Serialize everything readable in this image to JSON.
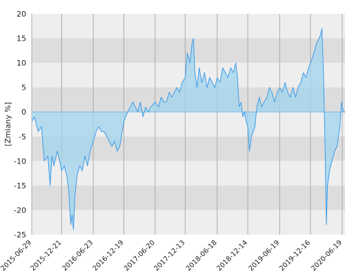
{
  "chart_data": {
    "type": "area",
    "ylabel": "[Zmiany %]",
    "xlabel": "",
    "ylim": [
      -25,
      20
    ],
    "y_ticks": [
      "20",
      "15",
      "10",
      "5",
      "0",
      "-5",
      "-10",
      "-15",
      "-20",
      "-25"
    ],
    "x_ticks": [
      "2015-06-29",
      "2015-12-21",
      "2016-06-23",
      "2016-12-19",
      "2017-06-20",
      "2017-12-13",
      "2018-06-18",
      "2018-12-14",
      "2019-06-19",
      "2019-12-16",
      "2020-06-19"
    ],
    "grid": true,
    "series": [
      {
        "values": [
          [
            "2015-06-29",
            -2
          ],
          [
            "2015-07-15",
            -1
          ],
          [
            "2015-08-05",
            -4
          ],
          [
            "2015-08-25",
            -3
          ],
          [
            "2015-09-10",
            -10
          ],
          [
            "2015-10-01",
            -9
          ],
          [
            "2015-10-15",
            -15
          ],
          [
            "2015-10-25",
            -9
          ],
          [
            "2015-11-05",
            -11
          ],
          [
            "2015-11-25",
            -8
          ],
          [
            "2015-12-10",
            -10
          ],
          [
            "2015-12-21",
            -12
          ],
          [
            "2016-01-05",
            -11
          ],
          [
            "2016-01-20",
            -13
          ],
          [
            "2016-02-01",
            -16
          ],
          [
            "2016-02-12",
            -23
          ],
          [
            "2016-02-20",
            -21
          ],
          [
            "2016-02-28",
            -24
          ],
          [
            "2016-03-08",
            -17
          ],
          [
            "2016-03-20",
            -13
          ],
          [
            "2016-04-05",
            -11
          ],
          [
            "2016-04-20",
            -12
          ],
          [
            "2016-05-05",
            -9
          ],
          [
            "2016-05-20",
            -11
          ],
          [
            "2016-06-05",
            -8
          ],
          [
            "2016-06-23",
            -6
          ],
          [
            "2016-07-10",
            -4
          ],
          [
            "2016-07-25",
            -3
          ],
          [
            "2016-08-10",
            -4
          ],
          [
            "2016-08-25",
            -4
          ],
          [
            "2016-09-10",
            -5
          ],
          [
            "2016-09-25",
            -6
          ],
          [
            "2016-10-10",
            -7
          ],
          [
            "2016-10-25",
            -6
          ],
          [
            "2016-11-10",
            -8
          ],
          [
            "2016-11-25",
            -7
          ],
          [
            "2016-12-19",
            -2
          ],
          [
            "2017-01-10",
            0
          ],
          [
            "2017-01-25",
            1
          ],
          [
            "2017-02-10",
            2
          ],
          [
            "2017-02-25",
            1
          ],
          [
            "2017-03-10",
            0
          ],
          [
            "2017-03-25",
            2
          ],
          [
            "2017-04-10",
            -1
          ],
          [
            "2017-04-25",
            1
          ],
          [
            "2017-05-10",
            0
          ],
          [
            "2017-05-25",
            1
          ],
          [
            "2017-06-20",
            2
          ],
          [
            "2017-07-10",
            1
          ],
          [
            "2017-07-25",
            3
          ],
          [
            "2017-08-10",
            2
          ],
          [
            "2017-08-25",
            2
          ],
          [
            "2017-09-10",
            4
          ],
          [
            "2017-09-25",
            3
          ],
          [
            "2017-10-10",
            4
          ],
          [
            "2017-10-25",
            5
          ],
          [
            "2017-11-10",
            4
          ],
          [
            "2017-11-25",
            6
          ],
          [
            "2017-12-13",
            7
          ],
          [
            "2017-12-25",
            12
          ],
          [
            "2018-01-10",
            10
          ],
          [
            "2018-01-22",
            14
          ],
          [
            "2018-01-30",
            15
          ],
          [
            "2018-02-08",
            8
          ],
          [
            "2018-02-20",
            5
          ],
          [
            "2018-03-05",
            9
          ],
          [
            "2018-03-20",
            6
          ],
          [
            "2018-04-05",
            8
          ],
          [
            "2018-04-20",
            5
          ],
          [
            "2018-05-05",
            7
          ],
          [
            "2018-05-20",
            6
          ],
          [
            "2018-06-05",
            5
          ],
          [
            "2018-06-18",
            7
          ],
          [
            "2018-07-05",
            6
          ],
          [
            "2018-07-20",
            9
          ],
          [
            "2018-08-05",
            8
          ],
          [
            "2018-08-20",
            7
          ],
          [
            "2018-09-05",
            9
          ],
          [
            "2018-09-20",
            8
          ],
          [
            "2018-10-05",
            10
          ],
          [
            "2018-10-15",
            7
          ],
          [
            "2018-10-25",
            1
          ],
          [
            "2018-11-05",
            2
          ],
          [
            "2018-11-15",
            -1
          ],
          [
            "2018-11-25",
            0
          ],
          [
            "2018-12-05",
            -2
          ],
          [
            "2018-12-14",
            -3
          ],
          [
            "2018-12-24",
            -8
          ],
          [
            "2019-01-05",
            -5
          ],
          [
            "2019-01-15",
            -4
          ],
          [
            "2019-01-25",
            -3
          ],
          [
            "2019-02-05",
            1
          ],
          [
            "2019-02-20",
            3
          ],
          [
            "2019-03-05",
            1
          ],
          [
            "2019-03-20",
            2
          ],
          [
            "2019-04-05",
            3
          ],
          [
            "2019-04-20",
            5
          ],
          [
            "2019-05-05",
            4
          ],
          [
            "2019-05-20",
            2
          ],
          [
            "2019-06-05",
            4
          ],
          [
            "2019-06-19",
            5
          ],
          [
            "2019-07-05",
            4
          ],
          [
            "2019-07-20",
            6
          ],
          [
            "2019-08-05",
            4
          ],
          [
            "2019-08-20",
            3
          ],
          [
            "2019-09-05",
            5
          ],
          [
            "2019-09-20",
            3
          ],
          [
            "2019-10-05",
            5
          ],
          [
            "2019-10-20",
            6
          ],
          [
            "2019-11-05",
            8
          ],
          [
            "2019-11-20",
            7
          ],
          [
            "2019-12-05",
            9
          ],
          [
            "2019-12-16",
            10
          ],
          [
            "2020-01-05",
            12
          ],
          [
            "2020-01-20",
            14
          ],
          [
            "2020-02-05",
            15
          ],
          [
            "2020-02-15",
            16
          ],
          [
            "2020-02-21",
            17
          ],
          [
            "2020-03-01",
            8
          ],
          [
            "2020-03-06",
            0
          ],
          [
            "2020-03-12",
            -10
          ],
          [
            "2020-03-18",
            -23
          ],
          [
            "2020-03-25",
            -15
          ],
          [
            "2020-04-05",
            -12
          ],
          [
            "2020-04-20",
            -10
          ],
          [
            "2020-05-05",
            -8
          ],
          [
            "2020-05-20",
            -7
          ],
          [
            "2020-06-05",
            -3
          ],
          [
            "2020-06-15",
            2
          ],
          [
            "2020-06-19",
            1
          ],
          [
            "2020-06-28",
            0
          ],
          [
            "2020-07-05",
            0
          ]
        ]
      }
    ],
    "colors": {
      "line": "#3d9be8",
      "fill": "#9fd3ec",
      "band_light": "#eeeeee",
      "band_dark": "#dddddd",
      "zero_line": "#7fb8e6",
      "vgrid": "#aaaaaa"
    }
  }
}
